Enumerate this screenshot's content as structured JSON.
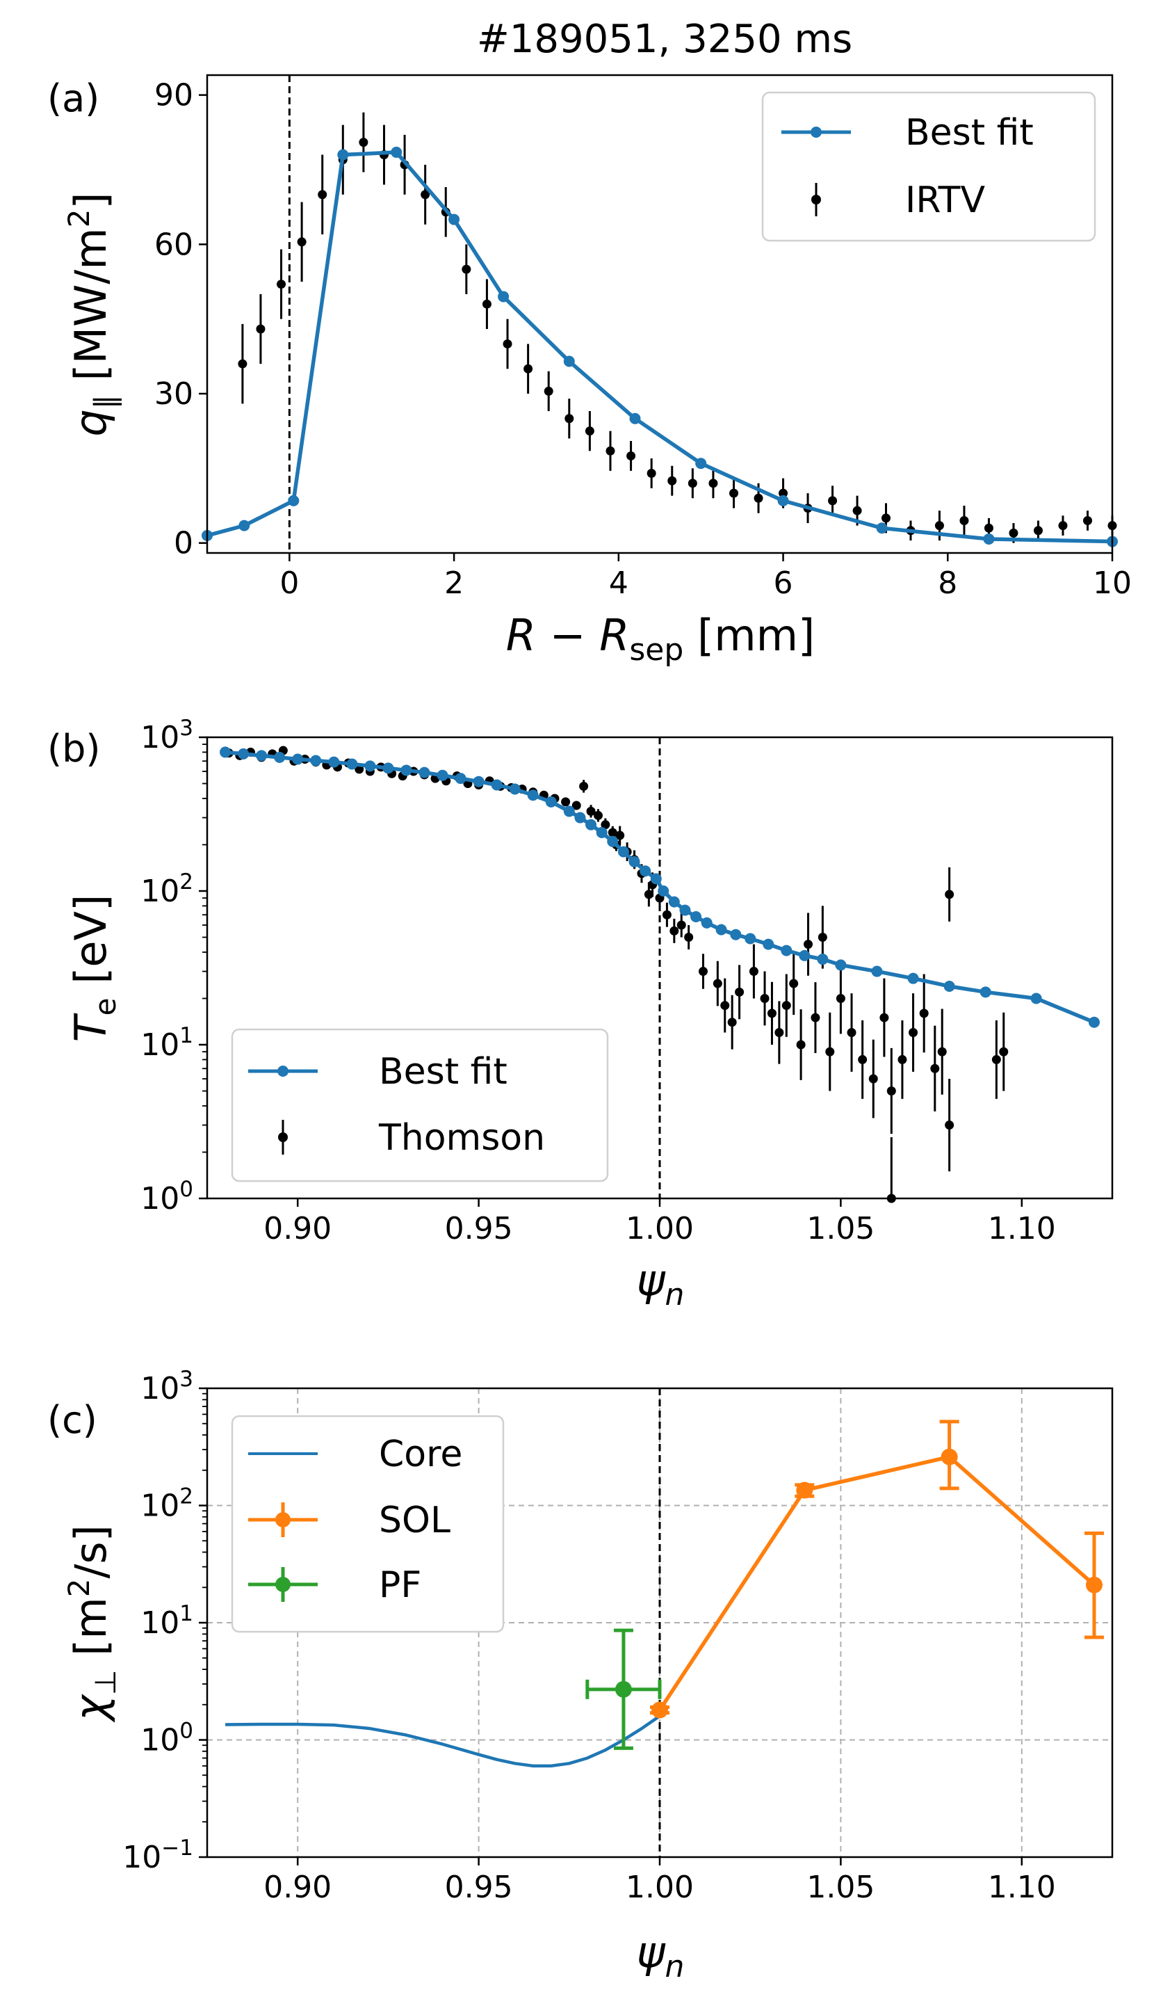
{
  "figure_title": "#189051, 3250 ms",
  "colors": {
    "blue": "#1f77b4",
    "orange": "#ff7f0e",
    "green": "#2ca02c",
    "black": "#000000",
    "grid": "#b0b0b0"
  },
  "chart_data": [
    {
      "id": "a",
      "panel_label": "(a)",
      "type": "line",
      "xlabel": "R − R_sep [mm]",
      "ylabel": "q_∥ [MW/m^2]",
      "xlim": [
        -1,
        10
      ],
      "ylim": [
        -2,
        94
      ],
      "xticks": [
        0,
        2,
        4,
        6,
        8,
        10
      ],
      "yticks": [
        0,
        30,
        60,
        90
      ],
      "vline_x": 0,
      "legend": [
        "Best fit",
        "IRTV"
      ],
      "series": [
        {
          "name": "Best fit",
          "kind": "line-marker",
          "color": "#1f77b4",
          "x": [
            -1.0,
            -0.55,
            0.05,
            0.65,
            1.3,
            2.0,
            2.6,
            3.4,
            4.2,
            5.0,
            6.0,
            7.2,
            8.5,
            10.0
          ],
          "y": [
            1.5,
            3.5,
            8.5,
            78,
            78.5,
            65,
            49.5,
            36.5,
            25,
            16,
            8.5,
            3,
            0.8,
            0.3
          ]
        },
        {
          "name": "IRTV",
          "kind": "errorbar",
          "color": "#000000",
          "x": [
            -0.57,
            -0.35,
            -0.1,
            0.15,
            0.4,
            0.65,
            0.9,
            1.15,
            1.4,
            1.65,
            1.9,
            2.15,
            2.4,
            2.65,
            2.9,
            3.15,
            3.4,
            3.65,
            3.9,
            4.15,
            4.4,
            4.65,
            4.9,
            5.15,
            5.4,
            5.7,
            6.0,
            6.3,
            6.6,
            6.9,
            7.25,
            7.55,
            7.9,
            8.2,
            8.5,
            8.8,
            9.1,
            9.4,
            9.7,
            10.0
          ],
          "y": [
            36,
            43,
            52,
            60.5,
            70,
            77,
            80.5,
            78,
            76,
            70,
            66.5,
            55,
            48,
            40,
            35,
            30.5,
            25,
            22.5,
            18.5,
            17.5,
            14,
            12.5,
            12,
            12,
            10,
            9,
            10,
            7,
            8.5,
            6.5,
            5,
            2.5,
            3.5,
            4.5,
            3,
            2,
            2.5,
            3.5,
            4.5,
            3.5
          ],
          "err": [
            8,
            7,
            7,
            8,
            8,
            7,
            6,
            6,
            6,
            6,
            5,
            5,
            5,
            5,
            5,
            4,
            4,
            4,
            4,
            3,
            3,
            3,
            3,
            3,
            3,
            3,
            3,
            3,
            3,
            3,
            3,
            2,
            3,
            3,
            2,
            2,
            2,
            2,
            2,
            2
          ]
        }
      ]
    },
    {
      "id": "b",
      "panel_label": "(b)",
      "type": "line",
      "yscale": "log",
      "xlabel": "ψ_n",
      "ylabel": "T_e [eV]",
      "xlim": [
        0.875,
        1.125
      ],
      "ylim": [
        1,
        1000
      ],
      "xticks": [
        "0.90",
        "0.95",
        "1.00",
        "1.05",
        "1.10"
      ],
      "ytick_exponents": [
        0,
        1,
        2,
        3
      ],
      "vline_x": 1.0,
      "legend": [
        "Best fit",
        "Thomson"
      ],
      "series": [
        {
          "name": "Best fit",
          "kind": "line-marker",
          "color": "#1f77b4",
          "x": [
            0.88,
            0.885,
            0.89,
            0.895,
            0.9,
            0.905,
            0.91,
            0.915,
            0.92,
            0.925,
            0.93,
            0.935,
            0.94,
            0.945,
            0.95,
            0.955,
            0.96,
            0.965,
            0.97,
            0.975,
            0.978,
            0.981,
            0.984,
            0.987,
            0.99,
            0.993,
            0.996,
            0.999,
            1.001,
            1.004,
            1.007,
            1.01,
            1.013,
            1.017,
            1.021,
            1.025,
            1.03,
            1.035,
            1.04,
            1.045,
            1.05,
            1.06,
            1.07,
            1.08,
            1.09,
            1.104,
            1.12
          ],
          "y": [
            800,
            780,
            760,
            740,
            720,
            705,
            690,
            670,
            650,
            630,
            610,
            590,
            565,
            540,
            515,
            490,
            460,
            420,
            380,
            330,
            300,
            270,
            240,
            210,
            180,
            155,
            135,
            120,
            100,
            85,
            75,
            68,
            62,
            56,
            52,
            49,
            45,
            41,
            38,
            36,
            33,
            30,
            27,
            24,
            22,
            20,
            14
          ]
        },
        {
          "name": "Thomson",
          "kind": "errorbar",
          "color": "#000000",
          "x": [
            0.881,
            0.884,
            0.887,
            0.89,
            0.893,
            0.896,
            0.899,
            0.902,
            0.905,
            0.908,
            0.911,
            0.914,
            0.917,
            0.92,
            0.923,
            0.926,
            0.929,
            0.932,
            0.935,
            0.938,
            0.941,
            0.944,
            0.947,
            0.95,
            0.953,
            0.956,
            0.959,
            0.962,
            0.965,
            0.968,
            0.971,
            0.974,
            0.977,
            0.979,
            0.981,
            0.983,
            0.985,
            0.987,
            0.988,
            0.989,
            0.991,
            0.993,
            0.995,
            0.997,
            0.998,
            1.0,
            1.002,
            1.004,
            1.006,
            1.008,
            1.012,
            1.016,
            1.018,
            1.02,
            1.022,
            1.026,
            1.029,
            1.031,
            1.033,
            1.035,
            1.037,
            1.039,
            1.041,
            1.043,
            1.045,
            1.047,
            1.05,
            1.053,
            1.056,
            1.059,
            1.062,
            1.064,
            1.067,
            1.07,
            1.073,
            1.076,
            1.078,
            1.08,
            1.093,
            1.095,
            1.08,
            1.064
          ],
          "y": [
            790,
            760,
            800,
            740,
            780,
            820,
            700,
            720,
            690,
            660,
            640,
            680,
            620,
            600,
            640,
            580,
            560,
            600,
            570,
            540,
            520,
            560,
            500,
            490,
            520,
            480,
            470,
            460,
            440,
            420,
            400,
            380,
            360,
            480,
            330,
            310,
            270,
            240,
            200,
            230,
            180,
            160,
            130,
            95,
            110,
            90,
            70,
            55,
            60,
            50,
            30,
            25,
            18,
            14,
            22,
            30,
            20,
            16,
            12,
            18,
            25,
            10,
            45,
            15,
            50,
            9,
            20,
            12,
            8,
            6,
            15,
            5,
            8,
            12,
            16,
            7,
            9,
            3,
            8,
            9,
            95,
            1
          ],
          "err_factor": [
            1.05,
            1.05,
            1.05,
            1.05,
            1.05,
            1.05,
            1.05,
            1.05,
            1.05,
            1.05,
            1.05,
            1.05,
            1.05,
            1.05,
            1.05,
            1.05,
            1.05,
            1.05,
            1.05,
            1.05,
            1.05,
            1.05,
            1.05,
            1.05,
            1.05,
            1.05,
            1.05,
            1.05,
            1.05,
            1.05,
            1.05,
            1.05,
            1.05,
            1.1,
            1.1,
            1.1,
            1.1,
            1.1,
            1.1,
            1.15,
            1.15,
            1.15,
            1.15,
            1.2,
            1.2,
            1.2,
            1.2,
            1.2,
            1.2,
            1.2,
            1.3,
            1.4,
            1.5,
            1.5,
            1.5,
            1.5,
            1.5,
            1.6,
            1.6,
            1.6,
            1.6,
            1.7,
            1.6,
            1.7,
            1.6,
            1.8,
            1.7,
            1.8,
            1.8,
            1.8,
            1.8,
            1.9,
            1.8,
            1.8,
            1.8,
            1.9,
            1.9,
            2.0,
            1.8,
            1.8,
            1.5,
            2.5
          ]
        }
      ]
    },
    {
      "id": "c",
      "panel_label": "(c)",
      "type": "line",
      "yscale": "log",
      "grid": true,
      "xlabel": "ψ_n",
      "ylabel": "χ_⊥ [m^2/s]",
      "xlim": [
        0.875,
        1.125
      ],
      "ylim": [
        0.1,
        1000
      ],
      "xticks": [
        "0.90",
        "0.95",
        "1.00",
        "1.05",
        "1.10"
      ],
      "ytick_exponents": [
        -1,
        0,
        1,
        2,
        3
      ],
      "vline_x": 1.0,
      "legend": [
        "Core",
        "SOL",
        "PF"
      ],
      "series": [
        {
          "name": "Core",
          "kind": "line",
          "color": "#1f77b4",
          "x": [
            0.88,
            0.89,
            0.9,
            0.91,
            0.92,
            0.93,
            0.94,
            0.95,
            0.955,
            0.96,
            0.965,
            0.97,
            0.975,
            0.98,
            0.985,
            0.99,
            0.995,
            1.0
          ],
          "y": [
            1.35,
            1.36,
            1.36,
            1.34,
            1.25,
            1.1,
            0.92,
            0.75,
            0.68,
            0.63,
            0.6,
            0.6,
            0.63,
            0.7,
            0.82,
            1.0,
            1.25,
            1.6
          ]
        },
        {
          "name": "SOL",
          "kind": "errorbar-line",
          "color": "#ff7f0e",
          "x": [
            1.0,
            1.04,
            1.08,
            1.12
          ],
          "y": [
            1.8,
            135,
            260,
            21
          ],
          "yerr_low": [
            1.7,
            120,
            140,
            7.5
          ],
          "yerr_high": [
            1.9,
            150,
            520,
            58
          ]
        },
        {
          "name": "PF",
          "kind": "errorbar",
          "color": "#2ca02c",
          "x": [
            0.99
          ],
          "y": [
            2.7
          ],
          "xerr": [
            0.01
          ],
          "yerr_low": [
            0.85
          ],
          "yerr_high": [
            8.6
          ]
        }
      ]
    }
  ]
}
